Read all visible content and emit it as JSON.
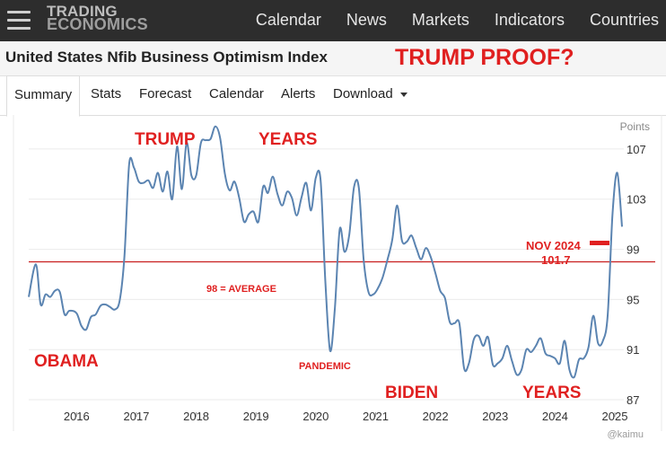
{
  "header": {
    "logo_line1": "TRADING",
    "logo_line2": "ECONOMICS",
    "nav": [
      "Calendar",
      "News",
      "Markets",
      "Indicators",
      "Countries"
    ]
  },
  "page": {
    "title": "United States Nfib Business Optimism Index",
    "annotation_title": "TRUMP PROOF?"
  },
  "tabs": [
    "Summary",
    "Stats",
    "Forecast",
    "Calendar",
    "Alerts",
    "Download"
  ],
  "annotations": {
    "trump": "TRUMP",
    "years1": "YEARS",
    "obama": "OBAMA",
    "average": "98 = AVERAGE",
    "pandemic": "PANDEMIC",
    "biden": "BIDEN",
    "years2": "YEARS",
    "nov_label": "NOV 2024",
    "nov_value": "101.7",
    "watermark": "@kaimu"
  },
  "colors": {
    "line": "#5b84b1",
    "annotation": "#e02020",
    "average_line": "#c81e1e"
  },
  "chart_data": {
    "type": "line",
    "title": "",
    "xlabel": "",
    "ylabel": "Points",
    "x_ticks": [
      "2016",
      "2017",
      "2018",
      "2019",
      "2020",
      "2021",
      "2022",
      "2023",
      "2024",
      "2025"
    ],
    "y_ticks": [
      87,
      91,
      95,
      99,
      103,
      107
    ],
    "xlim": [
      2015.2,
      2025.15
    ],
    "ylim": [
      86,
      109
    ],
    "reference_line": 98,
    "grid": "horizontal",
    "series": [
      {
        "x": [
          2015.2,
          2015.32,
          2015.4,
          2015.48,
          2015.56,
          2015.64,
          2015.72,
          2015.8,
          2015.88,
          2016.0,
          2016.08,
          2016.16,
          2016.24,
          2016.32,
          2016.4,
          2016.48,
          2016.56,
          2016.64,
          2016.72,
          2016.8,
          2016.88,
          2016.96,
          2017.04,
          2017.12,
          2017.2,
          2017.28,
          2017.36,
          2017.44,
          2017.52,
          2017.6,
          2017.68,
          2017.76,
          2017.84,
          2017.92,
          2018.0,
          2018.08,
          2018.16,
          2018.24,
          2018.32,
          2018.4,
          2018.48,
          2018.56,
          2018.64,
          2018.72,
          2018.8,
          2018.88,
          2018.96,
          2019.04,
          2019.12,
          2019.2,
          2019.28,
          2019.36,
          2019.44,
          2019.52,
          2019.6,
          2019.68,
          2019.76,
          2019.84,
          2019.92,
          2020.0,
          2020.08,
          2020.16,
          2020.24,
          2020.32,
          2020.4,
          2020.48,
          2020.56,
          2020.64,
          2020.72,
          2020.8,
          2020.88,
          2020.96,
          2021.04,
          2021.12,
          2021.2,
          2021.28,
          2021.36,
          2021.44,
          2021.52,
          2021.6,
          2021.68,
          2021.76,
          2021.84,
          2021.92,
          2022.0,
          2022.08,
          2022.16,
          2022.24,
          2022.32,
          2022.4,
          2022.48,
          2022.56,
          2022.64,
          2022.72,
          2022.8,
          2022.88,
          2022.96,
          2023.04,
          2023.12,
          2023.2,
          2023.28,
          2023.36,
          2023.44,
          2023.52,
          2023.6,
          2023.68,
          2023.76,
          2023.84,
          2023.92,
          2024.0,
          2024.08,
          2024.16,
          2024.24,
          2024.32,
          2024.4,
          2024.48,
          2024.56,
          2024.64,
          2024.72,
          2024.8,
          2024.88,
          2024.96,
          2025.04,
          2025.12
        ],
        "values": [
          95.2,
          97.8,
          94.6,
          95.4,
          95.2,
          95.7,
          95.6,
          93.8,
          94.1,
          93.9,
          92.9,
          92.6,
          93.6,
          93.8,
          94.5,
          94.6,
          94.4,
          94.2,
          94.9,
          98.4,
          105.8,
          105.5,
          104.4,
          104.3,
          104.5,
          103.9,
          105.1,
          103.6,
          105.2,
          103.0,
          107.2,
          103.8,
          107.5,
          104.9,
          104.9,
          107.5,
          107.7,
          107.8,
          108.8,
          107.9,
          105.0,
          103.7,
          104.4,
          103.1,
          101.2,
          101.8,
          102.0,
          101.2,
          104.0,
          103.5,
          104.8,
          103.4,
          102.5,
          103.6,
          103.1,
          101.7,
          103.1,
          104.3,
          102.1,
          104.7,
          104.5,
          96.4,
          90.9,
          94.4,
          100.6,
          98.8,
          100.2,
          104.0,
          103.9,
          98.2,
          95.6,
          95.4,
          95.9,
          96.8,
          98.2,
          99.8,
          102.5,
          99.7,
          99.6,
          100.1,
          99.1,
          98.2,
          99.1,
          98.4,
          97.1,
          95.7,
          95.1,
          93.2,
          93.1,
          93.1,
          89.5,
          89.9,
          91.8,
          92.1,
          91.3,
          92.0,
          89.8,
          89.9,
          90.3,
          91.3,
          90.1,
          89.0,
          89.4,
          91.0,
          90.8,
          91.3,
          91.9,
          90.7,
          90.5,
          90.3,
          89.9,
          91.7,
          89.4,
          88.8,
          90.2,
          90.3,
          91.2,
          93.7,
          91.5,
          91.7,
          93.7,
          101.7,
          105.1,
          100.8
        ]
      }
    ]
  }
}
